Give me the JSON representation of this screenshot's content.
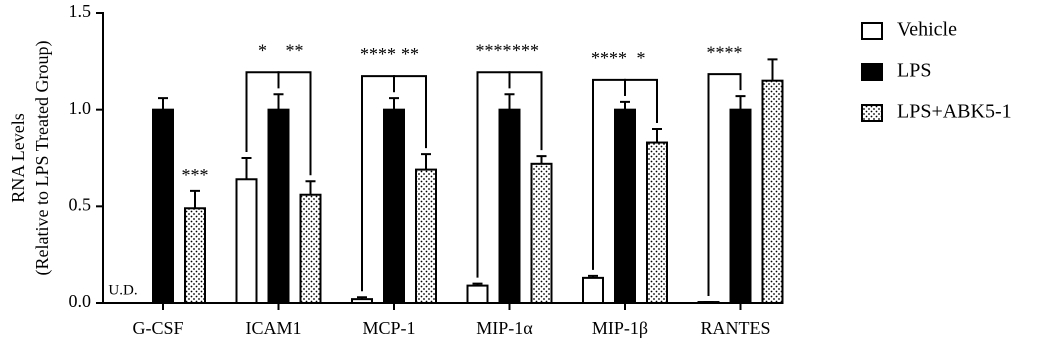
{
  "chart_data": {
    "type": "bar",
    "y_label": [
      "RNA Levels",
      "(Relative to LPS Treated Group)"
    ],
    "categories": [
      "G-CSF",
      "ICAM1",
      "MCP-1",
      "MIP-1α",
      "MIP-1β",
      "RANTES"
    ],
    "series": [
      {
        "name": "Vehicle",
        "color": "#ffffff",
        "values": [
          null,
          0.64,
          0.02,
          0.09,
          0.13,
          0.005
        ],
        "errors": [
          null,
          0.11,
          0.01,
          0.01,
          0.01,
          0
        ]
      },
      {
        "name": "LPS",
        "color": "#000000",
        "values": [
          1.0,
          1.0,
          1.0,
          1.0,
          1.0,
          1.0
        ],
        "errors": [
          0.06,
          0.08,
          0.06,
          0.08,
          0.04,
          0.07
        ]
      },
      {
        "name": "LPS+ABK5-1",
        "color": "#ffffff",
        "pattern": "dots",
        "values": [
          0.49,
          0.56,
          0.69,
          0.72,
          0.83,
          1.15
        ],
        "errors": [
          0.09,
          0.07,
          0.08,
          0.04,
          0.07,
          0.11
        ]
      }
    ],
    "annotations": [
      {
        "category": "G-CSF",
        "series": "Vehicle",
        "text": "U.D."
      },
      {
        "category": "G-CSF",
        "series": "LPS+ABK5-1",
        "text": "***"
      },
      {
        "category": "ICAM1",
        "pair": [
          "Vehicle",
          "LPS"
        ],
        "text": "*"
      },
      {
        "category": "ICAM1",
        "pair": [
          "LPS",
          "LPS+ABK5-1"
        ],
        "text": "**"
      },
      {
        "category": "MCP-1",
        "pair": [
          "Vehicle",
          "LPS"
        ],
        "text": "****"
      },
      {
        "category": "MCP-1",
        "pair": [
          "LPS",
          "LPS+ABK5-1"
        ],
        "text": "**"
      },
      {
        "category": "MIP-1α",
        "pair": [
          "Vehicle",
          "LPS"
        ],
        "text": "****"
      },
      {
        "category": "MIP-1α",
        "pair": [
          "LPS",
          "LPS+ABK5-1"
        ],
        "text": "***"
      },
      {
        "category": "MIP-1β",
        "pair": [
          "Vehicle",
          "LPS"
        ],
        "text": "****"
      },
      {
        "category": "MIP-1β",
        "pair": [
          "LPS",
          "LPS+ABK5-1"
        ],
        "text": "*"
      },
      {
        "category": "RANTES",
        "pair": [
          "Vehicle",
          "LPS"
        ],
        "text": "****"
      }
    ],
    "ylim": [
      0,
      1.5
    ],
    "yticks": [
      {
        "value": 0,
        "label": "0.0"
      },
      {
        "value": 0.5,
        "label": "0.5"
      },
      {
        "value": 1,
        "label": "1.0"
      },
      {
        "value": 1.5,
        "label": "1.5"
      }
    ],
    "legend": "right"
  }
}
